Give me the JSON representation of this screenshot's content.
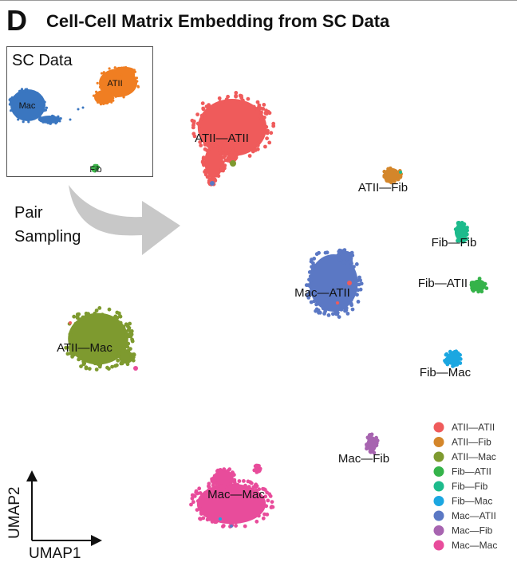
{
  "panel": {
    "letter": "D",
    "title": "Cell-Cell Matrix Embedding from SC Data"
  },
  "inset": {
    "title": "SC Data",
    "clusters": [
      {
        "name": "Mac",
        "color": "#3A76C0"
      },
      {
        "name": "ATII",
        "color": "#F07E22"
      },
      {
        "name": "Fib",
        "color": "#3DB54A"
      }
    ]
  },
  "arrow_label": {
    "line1": "Pair",
    "line2": "Sampling"
  },
  "chart_data": {
    "type": "scatter",
    "xlabel": "UMAP1",
    "ylabel": "UMAP2",
    "grid": false,
    "legend_position": "bottom-right",
    "clusters": [
      {
        "name": "ATII—ATII",
        "color": "#EF5B5B"
      },
      {
        "name": "ATII—Fib",
        "color": "#D4862A"
      },
      {
        "name": "ATII—Mac",
        "color": "#7E9A2F"
      },
      {
        "name": "Fib—ATII",
        "color": "#35B34A"
      },
      {
        "name": "Fib—Fib",
        "color": "#1DBB8C"
      },
      {
        "name": "Fib—Mac",
        "color": "#1BA7E1"
      },
      {
        "name": "Mac—ATII",
        "color": "#5B78C4"
      },
      {
        "name": "Mac—Fib",
        "color": "#A764B0"
      },
      {
        "name": "Mac—Mac",
        "color": "#E84C9B"
      }
    ]
  }
}
